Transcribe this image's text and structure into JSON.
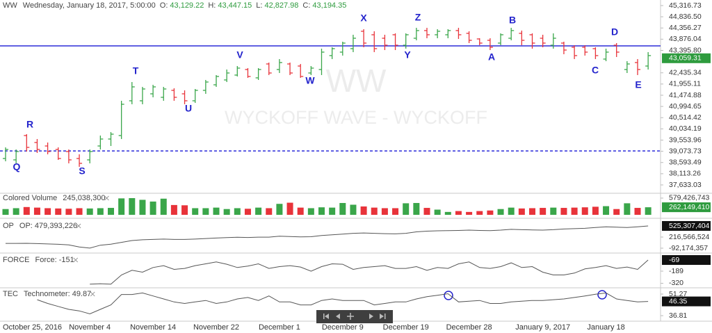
{
  "chart_data": [
    {
      "type": "ohlc",
      "title": "WW",
      "subtitle": "Wednesday, January 18, 2017, 5:00:00",
      "legend": [
        {
          "label": "O:",
          "value": "43,129.22"
        },
        {
          "label": "H:",
          "value": "43,447.15"
        },
        {
          "label": "L:",
          "value": "42,827.98"
        },
        {
          "label": "C:",
          "value": "43,194.35"
        }
      ],
      "watermark": "WW",
      "watermark_subtitle": "WYCKOFF WAVE - WYCKOFF",
      "categories": [
        null,
        null,
        "October 25, 2016",
        null,
        null,
        null,
        null,
        null,
        "November 4",
        null,
        null,
        null,
        null,
        null,
        "November 14",
        null,
        null,
        null,
        null,
        null,
        "November 22",
        null,
        null,
        null,
        null,
        null,
        "December 1",
        null,
        null,
        null,
        null,
        null,
        "December 9",
        null,
        null,
        null,
        null,
        null,
        "December 19",
        null,
        null,
        null,
        null,
        null,
        "December 28",
        null,
        null,
        null,
        null,
        null,
        null,
        "January 9, 2017",
        null,
        null,
        null,
        null,
        null,
        "January 18",
        null,
        null,
        null,
        null
      ],
      "open": [
        38765,
        38706,
        39748,
        39450,
        39301,
        39152,
        39063,
        38765,
        38706,
        39301,
        39599,
        39748,
        41237,
        41237,
        41535,
        41386,
        41684,
        41535,
        41237,
        41684,
        41922,
        42130,
        42339,
        42577,
        42220,
        42815,
        42577,
        42815,
        42726,
        42428,
        42577,
        43173,
        43322,
        43471,
        44215,
        44066,
        43917,
        44066,
        43619,
        43917,
        44245,
        44066,
        44066,
        44245,
        44126,
        43887,
        43828,
        43709,
        43917,
        44126,
        44066,
        43917,
        43619,
        43709,
        43530,
        43530,
        43471,
        43024,
        43619,
        42577,
        42875,
        42726
      ],
      "high": [
        39241,
        39152,
        39807,
        39599,
        39450,
        39241,
        39152,
        38944,
        39152,
        39748,
        39897,
        41237,
        42041,
        41833,
        41922,
        41833,
        41773,
        41684,
        41743,
        42130,
        42339,
        42577,
        42726,
        42637,
        42637,
        42875,
        43024,
        42875,
        42815,
        42726,
        43471,
        43530,
        43768,
        44066,
        44304,
        44215,
        44066,
        44126,
        44126,
        44364,
        44364,
        44304,
        44304,
        44364,
        44215,
        43917,
        43917,
        44126,
        44364,
        44245,
        44126,
        44066,
        44126,
        43768,
        43619,
        43619,
        43530,
        43471,
        43709,
        42934,
        43024,
        43322
      ],
      "low": [
        38646,
        38557,
        39063,
        39003,
        38944,
        38706,
        38557,
        38408,
        38557,
        39152,
        39301,
        39599,
        41088,
        41088,
        41386,
        41237,
        41237,
        41088,
        41148,
        41535,
        41833,
        42041,
        42279,
        42220,
        42130,
        42339,
        42428,
        42339,
        42220,
        42339,
        42339,
        43024,
        43173,
        43322,
        43530,
        43322,
        43411,
        43411,
        43471,
        43828,
        43917,
        43917,
        43917,
        43887,
        43709,
        43619,
        43411,
        43619,
        43828,
        43619,
        43471,
        43530,
        43471,
        43232,
        43024,
        43173,
        43024,
        42934,
        43113,
        42428,
        42339,
        42577
      ],
      "close": [
        39152,
        39063,
        39241,
        39152,
        39063,
        38765,
        38706,
        38557,
        39063,
        39599,
        39807,
        41088,
        41833,
        41743,
        41833,
        41743,
        41386,
        41237,
        41684,
        42041,
        42279,
        42428,
        42637,
        42279,
        42577,
        42428,
        42875,
        42428,
        42279,
        42637,
        43322,
        43471,
        43709,
        43917,
        43709,
        43471,
        43619,
        43619,
        44066,
        44245,
        44066,
        44215,
        44245,
        44066,
        43828,
        43709,
        43530,
        44066,
        44245,
        43828,
        43709,
        43709,
        43917,
        43411,
        43173,
        43322,
        43173,
        43322,
        43322,
        42815,
        42577,
        43173
      ],
      "up_color": "#3aa64a",
      "down_color": "#e8333a",
      "ylim": [
        37305,
        45555
      ],
      "yticks": [
        {
          "value": 45316.73,
          "label": "45,316.73"
        },
        {
          "value": 44836.5,
          "label": "44,836.50"
        },
        {
          "value": 44356.27,
          "label": "44,356.27"
        },
        {
          "value": 43876.04,
          "label": "43,876.04"
        },
        {
          "value": 43395.8,
          "label": "43,395.80"
        },
        {
          "value": 42435.34,
          "label": "42,435.34"
        },
        {
          "value": 41955.11,
          "label": "41,955.11"
        },
        {
          "value": 41474.88,
          "label": "41,474.88"
        },
        {
          "value": 40994.65,
          "label": "40,994.65"
        },
        {
          "value": 40514.42,
          "label": "40,514.42"
        },
        {
          "value": 40034.19,
          "label": "40,034.19"
        },
        {
          "value": 39553.96,
          "label": "39,553.96"
        },
        {
          "value": 39073.73,
          "label": "39,073.73"
        },
        {
          "value": 38593.49,
          "label": "38,593.49"
        },
        {
          "value": 38113.26,
          "label": "38,113.26"
        },
        {
          "value": 37633.03,
          "label": "37,633.03"
        }
      ],
      "last_value": {
        "value": 43059.31,
        "label": "43,059.31"
      },
      "last_color": "#2e9b3e",
      "hlines": [
        {
          "value": 43590,
          "style": "solid"
        },
        {
          "value": 39090,
          "style": "dashed"
        }
      ],
      "hline_color": "#2b2bd9",
      "annotations": [
        "Q",
        "R",
        "S",
        "T",
        "U",
        "V",
        "W",
        "X",
        "Y",
        "Z",
        "A",
        "B",
        "C",
        "D",
        "E"
      ],
      "annotation_color": "#2323cc"
    },
    {
      "type": "bar",
      "title": "Colored Volume",
      "subtitle": "245,038,300",
      "values": [
        200000000,
        230000000,
        270000000,
        250000000,
        230000000,
        220000000,
        210000000,
        230000000,
        220000000,
        230000000,
        240000000,
        570000000,
        579000000,
        520000000,
        460000000,
        560000000,
        340000000,
        330000000,
        230000000,
        230000000,
        250000000,
        200000000,
        230000000,
        210000000,
        250000000,
        230000000,
        380000000,
        420000000,
        250000000,
        230000000,
        260000000,
        250000000,
        410000000,
        350000000,
        290000000,
        250000000,
        230000000,
        230000000,
        400000000,
        410000000,
        240000000,
        180000000,
        100000000,
        130000000,
        100000000,
        130000000,
        150000000,
        200000000,
        250000000,
        220000000,
        230000000,
        240000000,
        250000000,
        240000000,
        250000000,
        260000000,
        280000000,
        300000000,
        200000000,
        400000000,
        240000000,
        262149410
      ],
      "ylim": [
        0,
        699000000
      ],
      "yticks": [
        {
          "value": 579426743,
          "label": "579,426,743"
        }
      ],
      "last_value": {
        "value": 262149410,
        "label": "262,149,410"
      },
      "last_color": "#2e9b3e"
    },
    {
      "type": "line",
      "title": "OP",
      "subtitle": "OP: 479,393,226",
      "color": "#555555",
      "values": [
        40000000,
        40000000,
        42000000,
        35000000,
        25000000,
        15000000,
        0,
        -60000000,
        -90000000,
        -10000000,
        20000000,
        70000000,
        120000000,
        140000000,
        150000000,
        160000000,
        150000000,
        150000000,
        160000000,
        175000000,
        190000000,
        200000000,
        210000000,
        205000000,
        215000000,
        215000000,
        240000000,
        230000000,
        220000000,
        225000000,
        260000000,
        280000000,
        300000000,
        320000000,
        330000000,
        320000000,
        310000000,
        305000000,
        320000000,
        360000000,
        380000000,
        390000000,
        395000000,
        400000000,
        410000000,
        400000000,
        395000000,
        410000000,
        430000000,
        420000000,
        415000000,
        410000000,
        420000000,
        440000000,
        450000000,
        460000000,
        480000000,
        500000000,
        490000000,
        480000000,
        500000000,
        525307404
      ],
      "ylim": [
        -189000000,
        660000000
      ],
      "yticks": [
        {
          "value": 216566524,
          "label": "216,566,524"
        },
        {
          "value": -92174357,
          "label": "-92,174,357"
        }
      ],
      "last_value": {
        "value": 525307404,
        "label": "525,307,404"
      },
      "last_color": "#111111"
    },
    {
      "type": "line",
      "title": "FORCE",
      "subtitle": "Force: -151",
      "color": "#555555",
      "values": [
        null,
        null,
        null,
        null,
        null,
        null,
        null,
        null,
        -330,
        -325,
        -330,
        -230,
        -180,
        -200,
        -150,
        -130,
        -170,
        -160,
        -130,
        -110,
        -90,
        -115,
        -150,
        -135,
        -110,
        -160,
        -140,
        -130,
        -145,
        -190,
        -140,
        -110,
        -115,
        -170,
        -150,
        -140,
        -130,
        -160,
        -160,
        -140,
        -180,
        -150,
        -160,
        -110,
        -90,
        -150,
        -160,
        -140,
        -100,
        -150,
        -140,
        -200,
        -230,
        -230,
        -210,
        -165,
        -150,
        -130,
        -160,
        -145,
        -170,
        -69
      ],
      "ylim": [
        -354,
        -9
      ],
      "yticks": [
        -189,
        -320
      ],
      "last_value": -69,
      "last_color": "#111111"
    },
    {
      "type": "line",
      "title": "TEC",
      "subtitle": "Technometer: 49.87",
      "color": "#555555",
      "values": [
        null,
        null,
        null,
        47.5,
        45,
        43,
        41,
        40,
        38,
        41,
        44,
        51,
        51,
        52,
        50,
        48,
        46,
        45,
        46,
        47,
        45,
        46,
        48,
        49,
        47,
        50,
        46,
        46,
        44,
        44,
        47,
        48,
        47,
        47,
        47,
        44,
        45,
        46,
        46,
        48,
        49.5,
        50.5,
        51.5,
        46,
        46.5,
        47,
        45,
        45,
        46,
        46.5,
        47,
        47,
        47.5,
        48,
        49,
        50,
        51.2,
        52,
        48,
        47,
        46,
        46.35
      ],
      "ylim": [
        33.1,
        53.6
      ],
      "yticks": [
        51.27,
        36.81
      ],
      "last_value": 46.35,
      "last_color": "#111111"
    }
  ]
}
